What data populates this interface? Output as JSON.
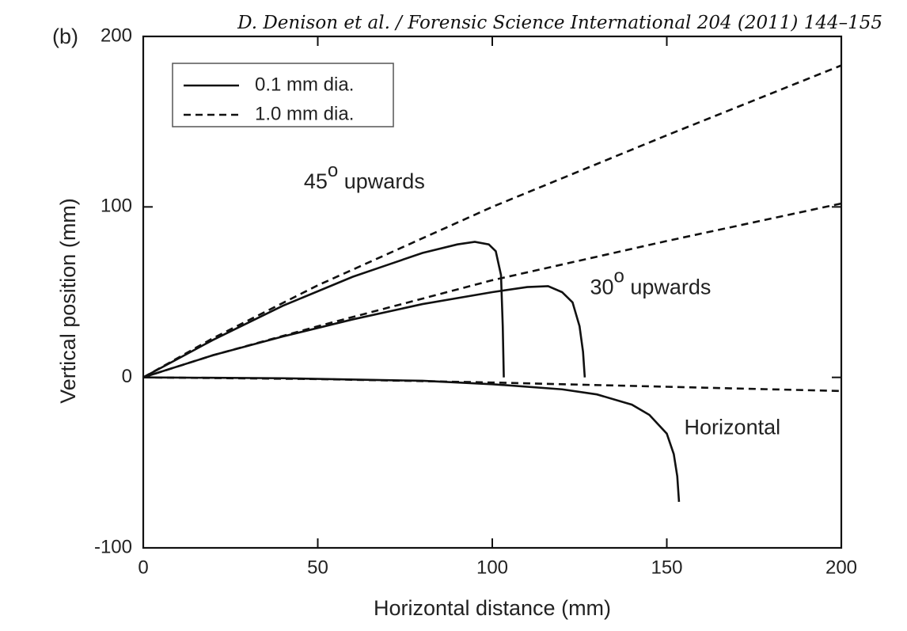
{
  "header": "D. Denison et al. / Forensic Science International 204 (2011) 144–155",
  "chart_data": {
    "type": "line",
    "panel_label": "(b)",
    "x_label": "Horizontal distance (mm)",
    "y_label": "Vertical position (mm)",
    "xlim": [
      0,
      200
    ],
    "ylim": [
      -100,
      200
    ],
    "xticks": [
      0,
      50,
      100,
      150,
      200
    ],
    "yticks": [
      -100,
      0,
      100,
      200
    ],
    "legend_position": "upper left",
    "legend": [
      {
        "label": "0.1 mm dia.",
        "dash": "solid"
      },
      {
        "label": "1.0 mm dia.",
        "dash": "dashed"
      }
    ],
    "annotations": [
      {
        "text": "45",
        "sup": "o",
        "rest": " upwards",
        "x": 46,
        "y": 114
      },
      {
        "text": "30",
        "sup": "o",
        "rest": " upwards",
        "x": 128,
        "y": 52
      },
      {
        "text": "Horizontal",
        "x": 155,
        "y": -30
      }
    ],
    "series": [
      {
        "group": 0,
        "dash": "solid",
        "color": "#111",
        "x": [
          0,
          10,
          20,
          40,
          60,
          70,
          80,
          90,
          95,
          99,
          101,
          102.5,
          103,
          103.3
        ],
        "values": [
          0,
          11,
          22,
          42,
          59,
          66,
          73,
          78,
          79.5,
          78,
          74,
          60,
          30,
          0
        ]
      },
      {
        "group": 1,
        "dash": "dashed",
        "color": "#111",
        "x": [
          0,
          20,
          50,
          100,
          150,
          200
        ],
        "values": [
          0,
          23,
          54,
          100,
          142,
          183
        ]
      },
      {
        "group": 0,
        "dash": "solid",
        "color": "#111",
        "x": [
          0,
          20,
          40,
          60,
          80,
          100,
          110,
          116,
          120,
          123,
          125,
          126,
          126.5
        ],
        "values": [
          0,
          13,
          24,
          34,
          43,
          50,
          53,
          53.5,
          50,
          44,
          30,
          15,
          0
        ]
      },
      {
        "group": 1,
        "dash": "dashed",
        "color": "#111",
        "x": [
          0,
          20,
          50,
          100,
          150,
          200
        ],
        "values": [
          0,
          13,
          30,
          57,
          80,
          102
        ]
      },
      {
        "group": 0,
        "dash": "solid",
        "color": "#111",
        "x": [
          0,
          40,
          80,
          100,
          120,
          130,
          140,
          145,
          150,
          152,
          153,
          153.5
        ],
        "values": [
          0,
          -0.5,
          -2,
          -4,
          -7,
          -10,
          -16,
          -22,
          -33,
          -45,
          -58,
          -73
        ]
      },
      {
        "group": 1,
        "dash": "dashed",
        "color": "#111",
        "x": [
          0,
          50,
          100,
          150,
          200
        ],
        "values": [
          0,
          -1,
          -3,
          -5.5,
          -8
        ]
      }
    ]
  }
}
